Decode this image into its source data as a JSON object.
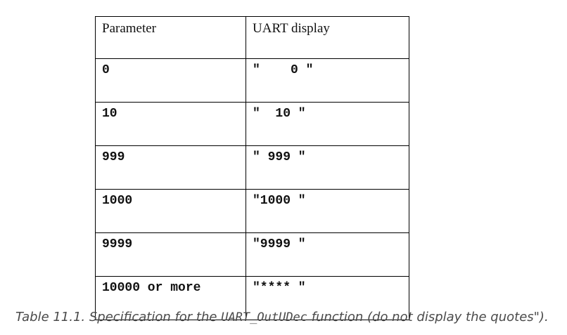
{
  "table": {
    "headers": [
      "Parameter",
      "UART display"
    ],
    "rows": [
      {
        "parameter": "0",
        "display": "\"    0 \""
      },
      {
        "parameter": "10",
        "display": "\"  10 \""
      },
      {
        "parameter": "999",
        "display": "\" 999 \""
      },
      {
        "parameter": "1000",
        "display": "\"1000 \""
      },
      {
        "parameter": "9999",
        "display": "\"9999 \""
      },
      {
        "parameter": "10000 or more",
        "display": "\"**** \""
      }
    ]
  },
  "caption": {
    "prefix": "Table 11.1. Specification for the ",
    "code": "UART_OutUDec",
    "suffix": " function (do not display the quotes\")."
  }
}
